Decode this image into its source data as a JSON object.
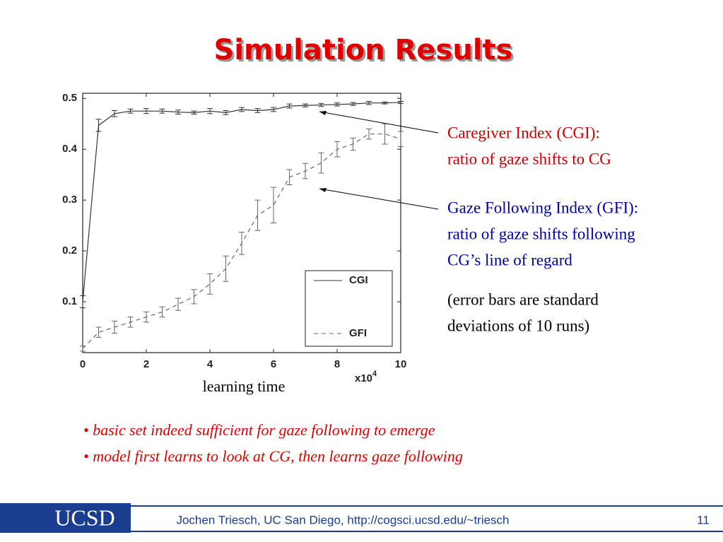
{
  "slide": {
    "title": "Simulation Results",
    "annotations": [
      [
        "Caregiver Index (CGI):",
        "ratio of gaze shifts to CG"
      ],
      [
        "Gaze Following Index (GFI):",
        "ratio of gaze shifts following",
        "CG’s line of regard"
      ],
      [
        "(error bars are standard",
        "deviations of 10 runs)"
      ]
    ],
    "bullets": [
      "• basic set indeed sufficient for gaze following to emerge",
      "• model first learns to look at CG, then learns gaze following"
    ],
    "logo": "UCSD",
    "footer": "Jochen Triesch, UC San Diego, http://cogsci.ucsd.edu/~triesch",
    "page_number": "11"
  },
  "chart_data": {
    "type": "line",
    "xlabel": "learning time",
    "x_scale_label": "x10",
    "x_scale_exponent": "4",
    "x": [
      0,
      0.5,
      1,
      1.5,
      2,
      2.5,
      3,
      3.5,
      4,
      4.5,
      5,
      5.5,
      6,
      6.5,
      7,
      7.5,
      8,
      8.5,
      9,
      9.5,
      10
    ],
    "series": [
      {
        "name": "CGI",
        "color": "#333333",
        "dash": "none",
        "values": [
          0.1,
          0.447,
          0.47,
          0.475,
          0.475,
          0.475,
          0.473,
          0.472,
          0.475,
          0.472,
          0.478,
          0.476,
          0.478,
          0.485,
          0.486,
          0.487,
          0.488,
          0.489,
          0.491,
          0.491,
          0.492
        ],
        "errors": [
          0.012,
          0.012,
          0.006,
          0.004,
          0.005,
          0.004,
          0.004,
          0.003,
          0.005,
          0.004,
          0.004,
          0.004,
          0.004,
          0.004,
          0.003,
          0.003,
          0.003,
          0.003,
          0.003,
          0.002,
          0.002
        ]
      },
      {
        "name": "GFI",
        "color": "#666666",
        "dash": "6,5",
        "values": [
          0.008,
          0.04,
          0.05,
          0.06,
          0.07,
          0.08,
          0.095,
          0.11,
          0.135,
          0.165,
          0.215,
          0.27,
          0.29,
          0.345,
          0.357,
          0.373,
          0.4,
          0.41,
          0.43,
          0.43,
          0.42
        ],
        "errors": [
          0.005,
          0.01,
          0.012,
          0.01,
          0.01,
          0.01,
          0.012,
          0.014,
          0.02,
          0.025,
          0.022,
          0.03,
          0.035,
          0.015,
          0.015,
          0.02,
          0.015,
          0.012,
          0.01,
          0.02,
          0.015
        ]
      }
    ],
    "xlim": [
      0,
      10
    ],
    "xticks": [
      0,
      2,
      4,
      6,
      8,
      10
    ],
    "ylim": [
      0,
      0.51
    ],
    "yticks": [
      0.1,
      0.2,
      0.3,
      0.4,
      0.5
    ],
    "legend": "lower right",
    "grid": false
  }
}
